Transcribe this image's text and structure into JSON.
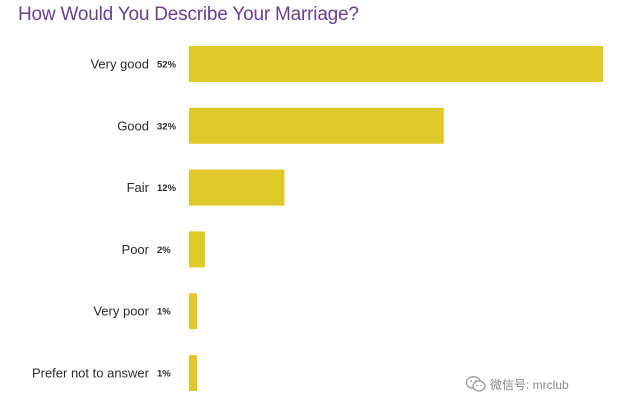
{
  "chart_data": {
    "type": "bar",
    "orientation": "horizontal",
    "title": "How Would You Describe Your Marriage?",
    "categories": [
      "Very good",
      "Good",
      "Fair",
      "Poor",
      "Very poor",
      "Prefer not to answer"
    ],
    "values": [
      52,
      32,
      12,
      2,
      1,
      1
    ],
    "value_labels": [
      "52%",
      "32%",
      "12%",
      "2%",
      "1%",
      "1%"
    ],
    "unit": "%",
    "xlim": [
      0,
      52
    ],
    "grid": false,
    "legend": "none",
    "bar_color": "#dec82a"
  },
  "watermark": {
    "icon": "wechat-icon",
    "text": "微信号: mrclub"
  }
}
